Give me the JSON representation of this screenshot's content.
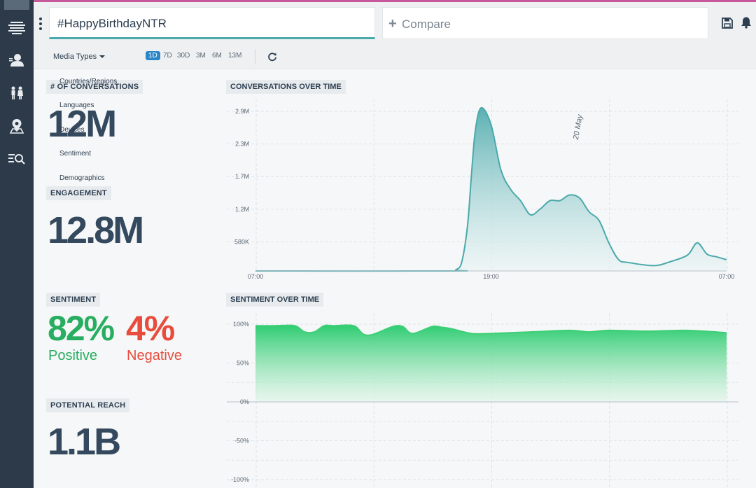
{
  "topbar": {
    "search_value": "#HappyBirthdayNTR",
    "compare_label": "Compare"
  },
  "icons": {
    "sidebar": [
      "logo-icon",
      "user-profile-icon",
      "people-icon",
      "location-icon",
      "search-list-icon"
    ],
    "topbar": [
      "save-icon",
      "bell-icon"
    ]
  },
  "filterbar": {
    "media_types_label": "Media Types",
    "ranges": [
      "1D",
      "7D",
      "30D",
      "3M",
      "6M",
      "13M"
    ],
    "active_range": "1D"
  },
  "dropdown": {
    "items": [
      "Countries/Regions",
      "Languages",
      "Devices",
      "Sentiment",
      "Demographics"
    ]
  },
  "kpis": {
    "conversations_title": "# OF CONVERSATIONS",
    "conversations_value": "12M",
    "engagement_title": "ENGAGEMENT",
    "engagement_value": "12.8M",
    "sentiment_title": "SENTIMENT",
    "positive_value": "82%",
    "positive_label": "Positive",
    "negative_value": "4%",
    "negative_label": "Negative",
    "reach_title": "POTENTIAL REACH",
    "reach_value": "1.1B"
  },
  "colors": {
    "accent_teal": "#4aa9ab",
    "positive_green": "#27ae60",
    "negative_red": "#e74c3c",
    "sidebar_bg": "#2c3a4a",
    "active_range_bg": "#2b86c5"
  },
  "chart_data": [
    {
      "type": "area",
      "title": "CONVERSATIONS OVER TIME",
      "y_ticks": [
        "580K",
        "1.2M",
        "1.7M",
        "2.3M",
        "2.9M"
      ],
      "y_tick_values": [
        580000,
        1160000,
        1740000,
        2320000,
        2900000
      ],
      "x_ticks": [
        "07:00",
        "19:00",
        "07:00"
      ],
      "x_tick_hours": [
        0,
        12,
        24
      ],
      "annotation": "20 May",
      "annotation_hour": 16.5,
      "ylim": [
        0,
        2900000
      ],
      "xlim_hours": [
        0,
        24
      ],
      "series": [
        {
          "hours": [
            0,
            10,
            10.2,
            10.5,
            10.8,
            11.0,
            11.2,
            11.5,
            12.0,
            12.5,
            13.0,
            13.5,
            14.0,
            14.5,
            15.0,
            15.5,
            16.0,
            16.5,
            17.0,
            17.5,
            18.0,
            18.5,
            19.0,
            20.0,
            20.5,
            21.0,
            22.0,
            22.5,
            23.0,
            23.5,
            24.0
          ],
          "values": [
            0,
            0,
            20000,
            150000,
            800000,
            1700000,
            2500000,
            2900000,
            2600000,
            1800000,
            1450000,
            1250000,
            1000000,
            1100000,
            1250000,
            1250000,
            1350000,
            1300000,
            1050000,
            900000,
            500000,
            200000,
            150000,
            100000,
            100000,
            150000,
            280000,
            500000,
            300000,
            250000,
            200000
          ]
        }
      ]
    },
    {
      "type": "area",
      "title": "SENTIMENT OVER TIME",
      "y_ticks": [
        "100%",
        "50%",
        "0%",
        "-50%",
        "-100%"
      ],
      "y_tick_values": [
        100,
        50,
        0,
        -50,
        -100
      ],
      "ylim": [
        -100,
        100
      ],
      "xlim_hours": [
        0,
        24
      ],
      "series": [
        {
          "hours": [
            0,
            1,
            2,
            2.5,
            3,
            3.5,
            4,
            5,
            5.5,
            6,
            7,
            7.5,
            8,
            9,
            9.5,
            10,
            11,
            12,
            14,
            16,
            17,
            18,
            20,
            22,
            24
          ],
          "values": [
            98,
            98,
            98,
            90,
            90,
            98,
            98,
            98,
            87,
            87,
            97,
            97,
            88,
            97,
            96,
            94,
            88,
            88,
            90,
            92,
            90,
            92,
            91,
            92,
            89
          ]
        }
      ]
    }
  ]
}
